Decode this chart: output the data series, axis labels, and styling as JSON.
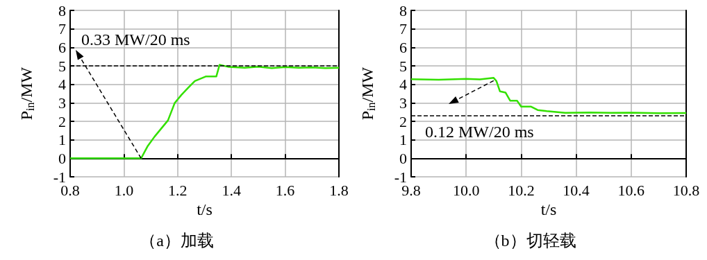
{
  "chart_data": [
    {
      "type": "line",
      "title": "（a）加载",
      "xlabel": "t/s",
      "ylabel": "P$_{in}$/MW",
      "series": [
        {
          "color": "#33e000",
          "x": [
            0.8,
            1.064,
            1.089,
            1.114,
            1.139,
            1.164,
            1.189,
            1.214,
            1.239,
            1.264,
            1.306,
            1.344,
            1.356,
            1.39,
            1.45,
            1.5,
            1.55,
            1.6,
            1.65,
            1.7,
            1.75,
            1.8
          ],
          "values": [
            0,
            0,
            0.67,
            1.17,
            1.61,
            2.05,
            2.99,
            3.43,
            3.81,
            4.18,
            4.43,
            4.43,
            5.06,
            4.94,
            4.9,
            4.95,
            4.88,
            4.93,
            4.9,
            4.92,
            4.88,
            4.9
          ]
        }
      ],
      "xlim": [
        0.8,
        1.8
      ],
      "xticks": [
        {
          "value": 0.8,
          "label": "0.8"
        },
        {
          "value": 1.0,
          "label": "1.0"
        },
        {
          "value": 1.2,
          "label": "1.2"
        },
        {
          "value": 1.4,
          "label": "1.4"
        },
        {
          "value": 1.6,
          "label": "1.6"
        },
        {
          "value": 1.8,
          "label": "1.8"
        }
      ],
      "ylim": [
        -1,
        8
      ],
      "yticks": [
        -1,
        0,
        1,
        2,
        3,
        4,
        5,
        6,
        7,
        8
      ],
      "grid": true,
      "line_style": "solid",
      "marker": "none",
      "ref_lines": [
        {
          "axis": "y",
          "value": 5,
          "color": "#000000",
          "line_style": "dashed"
        }
      ],
      "annotations": [
        {
          "text": "0.33 MW/20 ms",
          "x": 1.064,
          "y": 0
        }
      ]
    },
    {
      "type": "line",
      "title": "（b）切轻载",
      "xlabel": "t/s",
      "ylabel": "P$_{in}$/MW",
      "series": [
        {
          "color": "#33e000",
          "x": [
            9.8,
            9.9,
            10.0,
            10.05,
            10.1,
            10.11,
            10.123,
            10.143,
            10.16,
            10.185,
            10.2,
            10.235,
            10.26,
            10.293,
            10.36,
            10.45,
            10.527,
            10.6,
            10.7,
            10.8
          ],
          "values": [
            4.28,
            4.25,
            4.3,
            4.27,
            4.35,
            4.18,
            3.62,
            3.56,
            3.12,
            3.12,
            2.8,
            2.8,
            2.61,
            2.55,
            2.46,
            2.48,
            2.46,
            2.47,
            2.44,
            2.45
          ]
        }
      ],
      "xlim": [
        9.8,
        10.8
      ],
      "xticks": [
        {
          "value": 9.8,
          "label": "9.8"
        },
        {
          "value": 10.0,
          "label": "10.0"
        },
        {
          "value": 10.2,
          "label": "10.2"
        },
        {
          "value": 10.4,
          "label": "10.4"
        },
        {
          "value": 10.6,
          "label": "10.6"
        },
        {
          "value": 10.8,
          "label": "10.8"
        }
      ],
      "ylim": [
        -1,
        8
      ],
      "yticks": [
        -1,
        0,
        1,
        2,
        3,
        4,
        5,
        6,
        7,
        8
      ],
      "grid": true,
      "line_style": "solid",
      "marker": "none",
      "ref_lines": [
        {
          "axis": "y",
          "value": 2.3,
          "color": "#000000",
          "line_style": "dashed"
        }
      ],
      "annotations": [
        {
          "text": "0.12 MW/20 ms",
          "x": 10.1,
          "y": 4.2
        }
      ]
    }
  ]
}
